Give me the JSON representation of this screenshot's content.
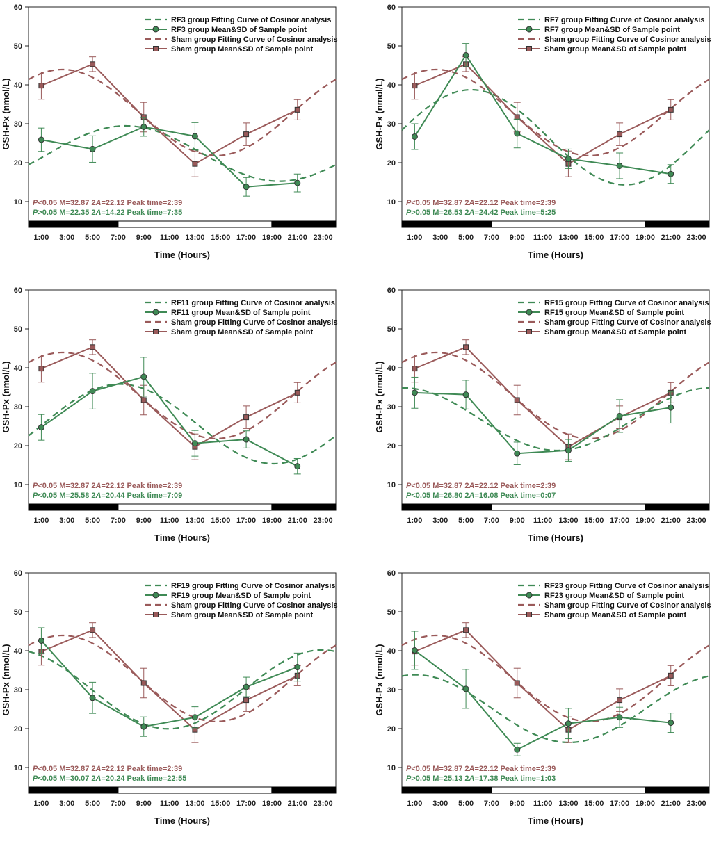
{
  "figure": {
    "common": {
      "ylabel": "GSH-Px (nmol/L)",
      "xlabel": "Time (Hours)",
      "yticks": [
        "10",
        "20",
        "30",
        "40",
        "50",
        "60"
      ],
      "xticks": [
        "1:00",
        "3:00",
        "5:00",
        "7:00",
        "9:00",
        "11:00",
        "13:00",
        "15:00",
        "17:00",
        "19:00",
        "21:00",
        "23:00"
      ],
      "sham_color": "#9a5a5a",
      "rf_color": "#3f8a55"
    }
  },
  "chart_data": [
    {
      "type": "line",
      "ylim": [
        5,
        60
      ],
      "xlim": [
        0,
        24
      ],
      "xlabel": "Time (Hours)",
      "ylabel": "GSH-Px (nmol/L)",
      "light_dark_bar": [
        {
          "from": 0,
          "to": 7,
          "state": "dark"
        },
        {
          "from": 7,
          "to": 19,
          "state": "light"
        },
        {
          "from": 19,
          "to": 24,
          "state": "dark"
        }
      ],
      "legend": {
        "rf_fit": "RF3 group Fitting Curve of Cosinor analysis",
        "rf_mean": "RF3 group Mean&SD of Sample point",
        "sham_fit": "Sham group Fitting Curve of Cosinor analysis",
        "sham_mean": "Sham group Mean&SD of Sample point"
      },
      "series": [
        {
          "name": "Sham group Mean&SD of Sample point",
          "x": [
            1,
            5,
            9,
            13,
            17,
            21
          ],
          "values": [
            39.8,
            45.3,
            31.7,
            19.7,
            27.3,
            33.6
          ],
          "sd": [
            3.5,
            1.9,
            3.8,
            3.3,
            2.9,
            2.6
          ]
        },
        {
          "name": "RF3 group Mean&SD of Sample point",
          "x": [
            1,
            5,
            9,
            13,
            17,
            21
          ],
          "values": [
            25.9,
            23.5,
            29.2,
            26.8,
            13.8,
            14.8
          ],
          "sd": [
            3.0,
            3.4,
            2.4,
            3.5,
            2.4,
            2.3
          ]
        }
      ],
      "cosinor": {
        "sham": {
          "mesor": 32.87,
          "amplitude2": 22.12,
          "peak": "2:39",
          "p": "<0.05"
        },
        "rf": {
          "mesor": 22.35,
          "amplitude2": 14.22,
          "peak": "7:35",
          "p": ">0.05"
        }
      },
      "stat_sham": {
        "p": "P",
        "rest": "<0.05 M=32.87 2",
        "a": "A",
        "tail": "=22.12 Peak time=2:39"
      },
      "stat_rf": {
        "p": "P",
        "rest": ">0.05 M=22.35 2",
        "a": "A",
        "tail": "=14.22 Peak time=7:35"
      }
    },
    {
      "type": "line",
      "ylim": [
        5,
        60
      ],
      "xlim": [
        0,
        24
      ],
      "xlabel": "Time (Hours)",
      "ylabel": "GSH-Px (nmol/L)",
      "light_dark_bar": [
        {
          "from": 0,
          "to": 7,
          "state": "dark"
        },
        {
          "from": 7,
          "to": 19,
          "state": "light"
        },
        {
          "from": 19,
          "to": 24,
          "state": "dark"
        }
      ],
      "legend": {
        "rf_fit": "RF7 group Fitting Curve of Cosinor analysis",
        "rf_mean": "RF7 group Mean&SD of Sample point",
        "sham_fit": "Sham group Fitting Curve of Cosinor analysis",
        "sham_mean": "Sham group Mean&SD of Sample point"
      },
      "series": [
        {
          "name": "Sham group Mean&SD of Sample point",
          "x": [
            1,
            5,
            9,
            13,
            17,
            21
          ],
          "values": [
            39.8,
            45.3,
            31.7,
            19.7,
            27.3,
            33.6
          ],
          "sd": [
            3.5,
            1.9,
            3.8,
            3.3,
            2.9,
            2.6
          ]
        },
        {
          "name": "RF7 group Mean&SD of Sample point",
          "x": [
            1,
            5,
            9,
            13,
            17,
            21
          ],
          "values": [
            26.7,
            47.6,
            27.5,
            21.0,
            19.2,
            17.1
          ],
          "sd": [
            3.3,
            3.0,
            3.7,
            2.5,
            3.3,
            2.4
          ]
        }
      ],
      "cosinor": {
        "sham": {
          "mesor": 32.87,
          "amplitude2": 22.12,
          "peak": "2:39",
          "p": "<0.05"
        },
        "rf": {
          "mesor": 26.53,
          "amplitude2": 24.42,
          "peak": "5:25",
          "p": ">0.05"
        }
      },
      "stat_sham": {
        "p": "P",
        "rest": "<0.05 M=32.87 2",
        "a": "A",
        "tail": "=22.12 Peak time=2:39"
      },
      "stat_rf": {
        "p": "P",
        "rest": ">0.05 M=26.53 2",
        "a": "A",
        "tail": "=24.42 Peak time=5:25"
      }
    },
    {
      "type": "line",
      "ylim": [
        5,
        60
      ],
      "xlim": [
        0,
        24
      ],
      "xlabel": "Time (Hours)",
      "ylabel": "GSH-Px (nmol/L)",
      "light_dark_bar": [
        {
          "from": 0,
          "to": 7,
          "state": "dark"
        },
        {
          "from": 7,
          "to": 19,
          "state": "light"
        },
        {
          "from": 19,
          "to": 24,
          "state": "dark"
        }
      ],
      "legend": {
        "rf_fit": "RF11 group Fitting Curve of Cosinor analysis",
        "rf_mean": "RF11 group Mean&SD of Sample point",
        "sham_fit": "Sham group Fitting Curve of Cosinor analysis",
        "sham_mean": "Sham group Mean&SD of Sample point"
      },
      "series": [
        {
          "name": "Sham group Mean&SD of Sample point",
          "x": [
            1,
            5,
            9,
            13,
            17,
            21
          ],
          "values": [
            39.8,
            45.3,
            31.7,
            19.7,
            27.3,
            33.6
          ],
          "sd": [
            3.5,
            1.9,
            3.8,
            3.3,
            2.9,
            2.6
          ]
        },
        {
          "name": "RF11 group Mean&SD of Sample point",
          "x": [
            1,
            5,
            9,
            13,
            17,
            21
          ],
          "values": [
            24.7,
            34.0,
            37.7,
            20.6,
            21.6,
            14.7
          ],
          "sd": [
            3.3,
            4.6,
            5.0,
            3.3,
            2.2,
            2.0
          ]
        }
      ],
      "cosinor": {
        "sham": {
          "mesor": 32.87,
          "amplitude2": 22.12,
          "peak": "2:39",
          "p": "<0.05"
        },
        "rf": {
          "mesor": 25.58,
          "amplitude2": 20.44,
          "peak": "7:09",
          "p": "<0.05"
        }
      },
      "stat_sham": {
        "p": "P",
        "rest": "<0.05 M=32.87 2",
        "a": "A",
        "tail": "=22.12 Peak time=2:39"
      },
      "stat_rf": {
        "p": "P",
        "rest": "<0.05 M=25.58 2",
        "a": "A",
        "tail": "=20.44 Peak time=7:09"
      }
    },
    {
      "type": "line",
      "ylim": [
        5,
        60
      ],
      "xlim": [
        0,
        24
      ],
      "xlabel": "Time (Hours)",
      "ylabel": "GSH-Px (nmol/L)",
      "light_dark_bar": [
        {
          "from": 0,
          "to": 7,
          "state": "dark"
        },
        {
          "from": 7,
          "to": 19,
          "state": "light"
        },
        {
          "from": 19,
          "to": 24,
          "state": "dark"
        }
      ],
      "legend": {
        "rf_fit": "RF15 group Fitting Curve of Cosinor analysis",
        "rf_mean": "RF15 group Mean&SD of Sample point",
        "sham_fit": "Sham group Fitting Curve of Cosinor analysis",
        "sham_mean": "Sham group Mean&SD of Sample point"
      },
      "series": [
        {
          "name": "Sham group Mean&SD of Sample point",
          "x": [
            1,
            5,
            9,
            13,
            17,
            21
          ],
          "values": [
            39.8,
            45.3,
            31.7,
            19.7,
            27.3,
            33.6
          ],
          "sd": [
            3.5,
            1.9,
            3.8,
            3.3,
            2.9,
            2.6
          ]
        },
        {
          "name": "RF15 group Mean&SD of Sample point",
          "x": [
            1,
            5,
            9,
            13,
            17,
            21
          ],
          "values": [
            33.6,
            33.1,
            18.0,
            18.8,
            27.6,
            29.8
          ],
          "sd": [
            4.0,
            3.7,
            2.9,
            2.8,
            4.2,
            4.0
          ]
        }
      ],
      "cosinor": {
        "sham": {
          "mesor": 32.87,
          "amplitude2": 22.12,
          "peak": "2:39",
          "p": "<0.05"
        },
        "rf": {
          "mesor": 26.8,
          "amplitude2": 16.08,
          "peak": "0:07",
          "p": "<0.05"
        }
      },
      "stat_sham": {
        "p": "P",
        "rest": "<0.05 M=32.87 2",
        "a": "A",
        "tail": "=22.12 Peak time=2:39"
      },
      "stat_rf": {
        "p": "P",
        "rest": "<0.05 M=26.80 2",
        "a": "A",
        "tail": "=16.08 Peak time=0:07"
      }
    },
    {
      "type": "line",
      "ylim": [
        5,
        60
      ],
      "xlim": [
        0,
        24
      ],
      "xlabel": "Time (Hours)",
      "ylabel": "GSH-Px (nmol/L)",
      "light_dark_bar": [
        {
          "from": 0,
          "to": 7,
          "state": "dark"
        },
        {
          "from": 7,
          "to": 19,
          "state": "light"
        },
        {
          "from": 19,
          "to": 24,
          "state": "dark"
        }
      ],
      "legend": {
        "rf_fit": "RF19 group Fitting Curve of Cosinor analysis",
        "rf_mean": "RF19 group Mean&SD of Sample point",
        "sham_fit": "Sham group Fitting Curve of Cosinor analysis",
        "sham_mean": "Sham group Mean&SD of Sample point"
      },
      "series": [
        {
          "name": "Sham group Mean&SD of Sample point",
          "x": [
            1,
            5,
            9,
            13,
            17,
            21
          ],
          "values": [
            39.8,
            45.3,
            31.7,
            19.7,
            27.3,
            33.6
          ],
          "sd": [
            3.5,
            1.9,
            3.8,
            3.3,
            2.9,
            2.6
          ]
        },
        {
          "name": "RF19 group Mean&SD of Sample point",
          "x": [
            1,
            5,
            9,
            13,
            17,
            21
          ],
          "values": [
            42.6,
            27.9,
            20.5,
            22.9,
            30.7,
            35.8
          ],
          "sd": [
            3.3,
            4.0,
            2.5,
            2.7,
            2.5,
            3.6
          ]
        }
      ],
      "cosinor": {
        "sham": {
          "mesor": 32.87,
          "amplitude2": 22.12,
          "peak": "2:39",
          "p": "<0.05"
        },
        "rf": {
          "mesor": 30.07,
          "amplitude2": 20.24,
          "peak": "22:55",
          "p": "<0.05"
        }
      },
      "stat_sham": {
        "p": "P",
        "rest": "<0.05 M=32.87 2",
        "a": "A",
        "tail": "=22.12 Peak time=2:39"
      },
      "stat_rf": {
        "p": "P",
        "rest": "<0.05 M=30.07 2",
        "a": "A",
        "tail": "=20.24 Peak time=22:55"
      }
    },
    {
      "type": "line",
      "ylim": [
        5,
        60
      ],
      "xlim": [
        0,
        24
      ],
      "xlabel": "Time (Hours)",
      "ylabel": "GSH-Px (nmol/L)",
      "light_dark_bar": [
        {
          "from": 0,
          "to": 7,
          "state": "dark"
        },
        {
          "from": 7,
          "to": 19,
          "state": "light"
        },
        {
          "from": 19,
          "to": 24,
          "state": "dark"
        }
      ],
      "legend": {
        "rf_fit": "RF23 group Fitting Curve of Cosinor analysis",
        "rf_mean": "RF23 group Mean&SD of Sample point",
        "sham_fit": "Sham group Fitting Curve of Cosinor analysis",
        "sham_mean": "Sham group Mean&SD of Sample point"
      },
      "series": [
        {
          "name": "Sham group Mean&SD of Sample point",
          "x": [
            1,
            5,
            9,
            13,
            17,
            21
          ],
          "values": [
            39.8,
            45.3,
            31.7,
            19.7,
            27.3,
            33.6
          ],
          "sd": [
            3.5,
            1.9,
            3.8,
            3.3,
            2.9,
            2.6
          ]
        },
        {
          "name": "RF23 group Mean&SD of Sample point",
          "x": [
            1,
            5,
            9,
            13,
            17,
            21
          ],
          "values": [
            40.1,
            30.2,
            14.6,
            21.3,
            22.9,
            21.5
          ],
          "sd": [
            4.9,
            5.0,
            1.6,
            3.9,
            2.6,
            2.5
          ]
        }
      ],
      "cosinor": {
        "sham": {
          "mesor": 32.87,
          "amplitude2": 22.12,
          "peak": "2:39",
          "p": "<0.05"
        },
        "rf": {
          "mesor": 25.13,
          "amplitude2": 17.38,
          "peak": "1:03",
          "p": ">0.05"
        }
      },
      "stat_sham": {
        "p": "P",
        "rest": "<0.05 M=32.87 2",
        "a": "A",
        "tail": "=22.12 Peak time=2:39"
      },
      "stat_rf": {
        "p": "P",
        "rest": ">0.05 M=25.13 2",
        "a": "A",
        "tail": "=17.38 Peak time=1:03"
      }
    }
  ]
}
